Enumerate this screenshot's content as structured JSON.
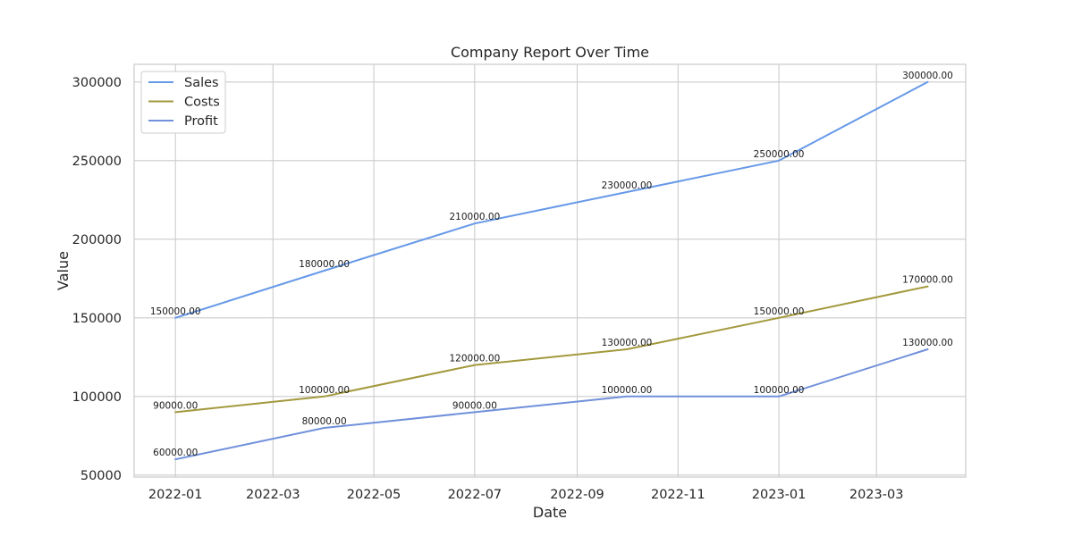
{
  "chart_data": {
    "type": "line",
    "title": "Company Report Over Time",
    "xlabel": "Date",
    "ylabel": "Value",
    "x": [
      "2022-01-01",
      "2022-04-01",
      "2022-07-01",
      "2022-10-01",
      "2023-01-01",
      "2023-04-01"
    ],
    "x_ticks": [
      "2022-01",
      "2022-03",
      "2022-05",
      "2022-07",
      "2022-09",
      "2022-11",
      "2023-01",
      "2023-03"
    ],
    "y_ticks": [
      50000,
      100000,
      150000,
      200000,
      250000,
      300000
    ],
    "ylim": [
      48750,
      311250
    ],
    "xlim": [
      "2021-12-07",
      "2023-04-24"
    ],
    "grid": true,
    "legend_position": "top-left",
    "series": [
      {
        "name": "Sales",
        "color": "#6699e8",
        "values": [
          150000,
          180000,
          210000,
          230000,
          250000,
          300000
        ],
        "labels": [
          "150000.00",
          "180000.00",
          "210000.00",
          "230000.00",
          "250000.00",
          "300000.00"
        ]
      },
      {
        "name": "Costs",
        "color": "#a3993d",
        "values": [
          90000,
          100000,
          120000,
          130000,
          150000,
          170000
        ],
        "labels": [
          "90000.00",
          "100000.00",
          "120000.00",
          "130000.00",
          "150000.00",
          "170000.00"
        ]
      },
      {
        "name": "Profit",
        "color": "#7090db",
        "values": [
          60000,
          80000,
          90000,
          100000,
          100000,
          130000
        ],
        "labels": [
          "60000.00",
          "80000.00",
          "90000.00",
          "100000.00",
          "100000.00",
          "130000.00"
        ]
      }
    ]
  }
}
